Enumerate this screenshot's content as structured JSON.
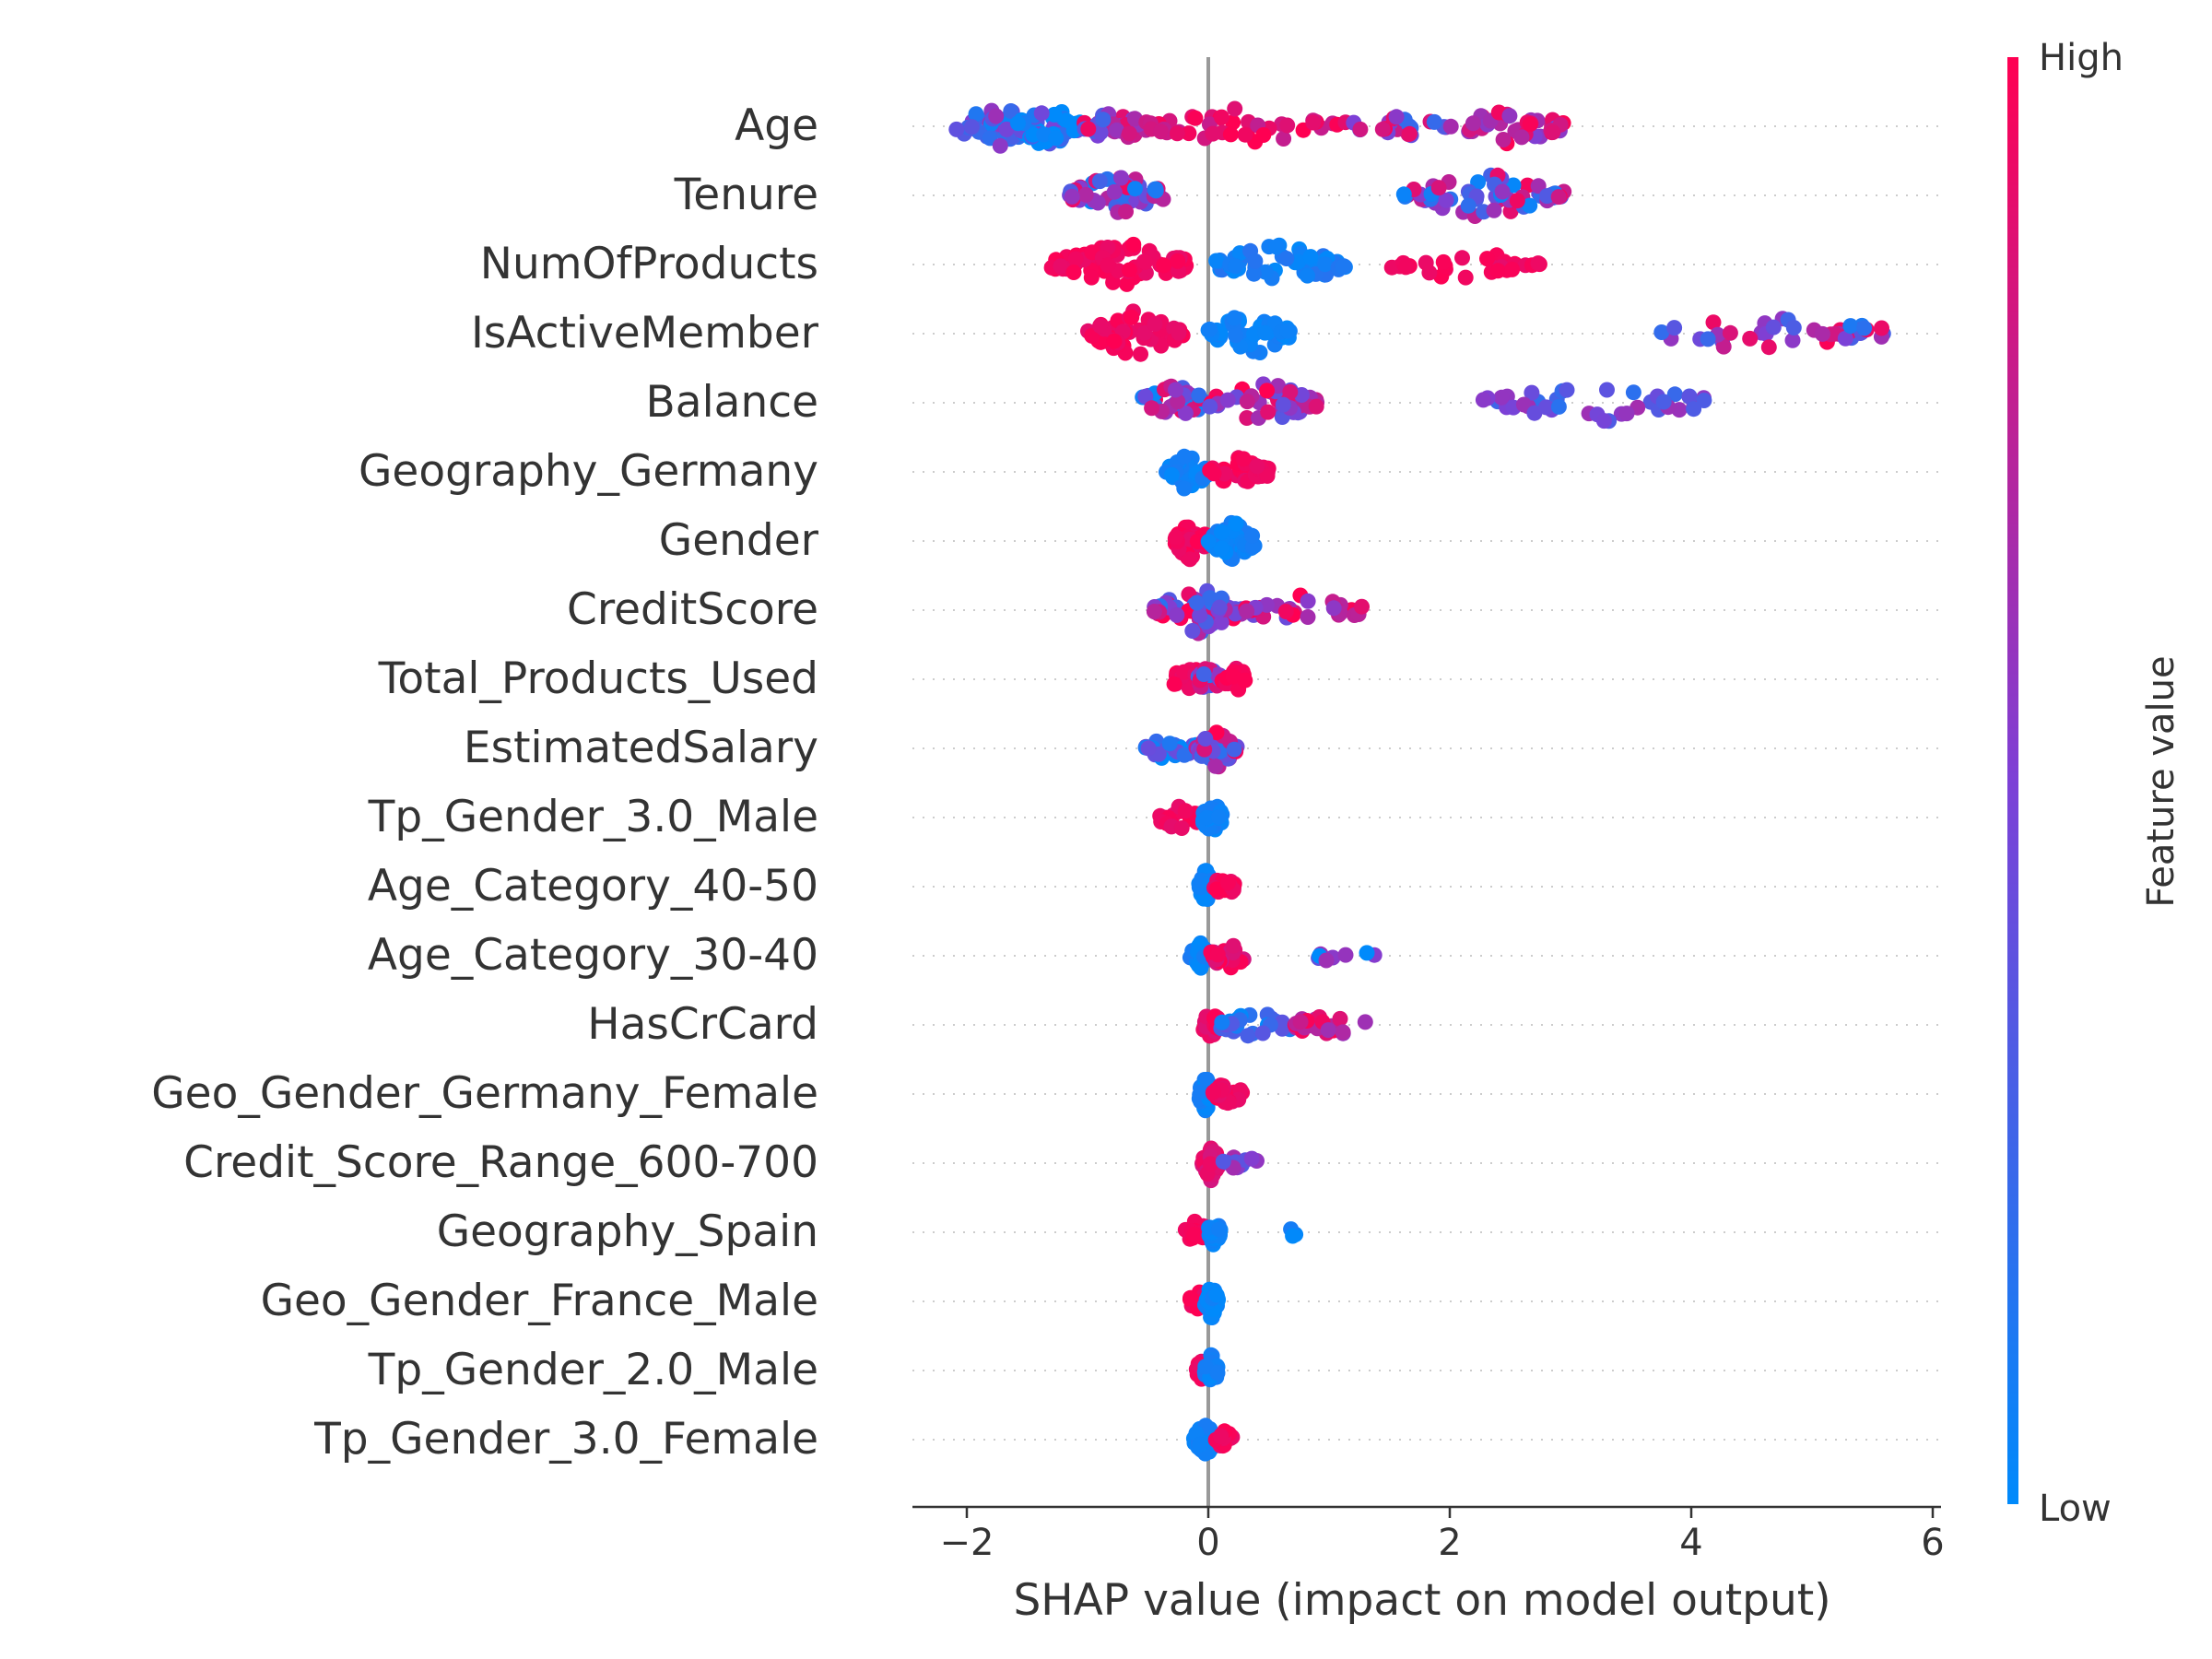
{
  "chart_data": {
    "type": "scatter",
    "title": "",
    "xlabel": "SHAP value (impact on model output)",
    "xlim": [
      -2.45,
      6.05
    ],
    "xticks": [
      -2,
      0,
      2,
      4,
      6
    ],
    "xtick_labels": [
      "−2",
      "0",
      "2",
      "4",
      "6"
    ],
    "grid": "dotted row guides per feature",
    "legend": "right colorbar",
    "colorbar": {
      "label": "Feature value",
      "high_label": "High",
      "low_label": "Low",
      "colors": [
        "#008afb",
        "#7d40d6",
        "#ff0052"
      ]
    },
    "zero_line_color": "#999999",
    "features": [
      {
        "name": "Age",
        "clusters": [
          {
            "lo": -2.1,
            "hi": -1.4,
            "n": 42,
            "val": 0.35,
            "spread": 0.6
          },
          {
            "lo": -1.6,
            "hi": -1.05,
            "n": 46,
            "val": 0.1,
            "spread": 0.8
          },
          {
            "lo": -1.05,
            "hi": -0.5,
            "n": 30,
            "val": 0.6,
            "spread": 0.7
          },
          {
            "lo": -0.5,
            "hi": 1.2,
            "n": 40,
            "val": 0.9,
            "spread": 0.3
          },
          {
            "lo": 1.2,
            "hi": 2.0,
            "n": 22,
            "val": 0.6,
            "spread": 0.8
          },
          {
            "lo": 2.0,
            "hi": 2.95,
            "n": 40,
            "val": 0.75,
            "spread": 0.5
          }
        ]
      },
      {
        "name": "Tenure",
        "clusters": [
          {
            "lo": -1.15,
            "hi": -0.35,
            "n": 50,
            "val": 0.5,
            "spread": 1.0
          },
          {
            "lo": 1.6,
            "hi": 2.95,
            "n": 60,
            "val": 0.5,
            "spread": 1.0
          }
        ]
      },
      {
        "name": "NumOfProducts",
        "clusters": [
          {
            "lo": -1.3,
            "hi": -0.15,
            "n": 70,
            "val": 0.95,
            "spread": 0.1
          },
          {
            "lo": 0.05,
            "hi": 1.15,
            "n": 60,
            "val": 0.08,
            "spread": 0.15
          },
          {
            "lo": 1.5,
            "hi": 2.75,
            "n": 30,
            "val": 0.95,
            "spread": 0.1
          }
        ]
      },
      {
        "name": "IsActiveMember",
        "clusters": [
          {
            "lo": -1.0,
            "hi": -0.2,
            "n": 55,
            "val": 0.95,
            "spread": 0.1
          },
          {
            "lo": 0.0,
            "hi": 0.7,
            "n": 50,
            "val": 0.05,
            "spread": 0.1
          },
          {
            "lo": 3.65,
            "hi": 5.7,
            "n": 40,
            "val": 0.55,
            "spread": 0.9
          }
        ]
      },
      {
        "name": "Balance",
        "clusters": [
          {
            "lo": -0.6,
            "hi": 0.0,
            "n": 40,
            "val": 0.5,
            "spread": 1.0
          },
          {
            "lo": 0.0,
            "hi": 0.9,
            "n": 45,
            "val": 0.7,
            "spread": 0.7
          },
          {
            "lo": 2.25,
            "hi": 4.2,
            "n": 40,
            "val": 0.4,
            "spread": 0.5
          }
        ]
      },
      {
        "name": "Geography_Germany",
        "clusters": [
          {
            "lo": -0.35,
            "hi": 0.0,
            "n": 40,
            "val": 0.05,
            "spread": 0.1
          },
          {
            "lo": 0.0,
            "hi": 0.5,
            "n": 35,
            "val": 0.95,
            "spread": 0.1
          }
        ]
      },
      {
        "name": "Gender",
        "clusters": [
          {
            "lo": -0.3,
            "hi": 0.0,
            "n": 40,
            "val": 0.95,
            "spread": 0.1
          },
          {
            "lo": 0.0,
            "hi": 0.4,
            "n": 40,
            "val": 0.05,
            "spread": 0.1
          }
        ]
      },
      {
        "name": "CreditScore",
        "clusters": [
          {
            "lo": -0.45,
            "hi": 0.3,
            "n": 60,
            "val": 0.6,
            "spread": 0.9
          },
          {
            "lo": 0.3,
            "hi": 1.3,
            "n": 30,
            "val": 0.7,
            "spread": 0.8
          }
        ]
      },
      {
        "name": "Total_Products_Used",
        "clusters": [
          {
            "lo": -0.3,
            "hi": 0.0,
            "n": 25,
            "val": 0.95,
            "spread": 0.1
          },
          {
            "lo": -0.1,
            "hi": 0.1,
            "n": 30,
            "val": 0.55,
            "spread": 0.8
          },
          {
            "lo": 0.1,
            "hi": 0.38,
            "n": 20,
            "val": 0.95,
            "spread": 0.1
          }
        ]
      },
      {
        "name": "EstimatedSalary",
        "clusters": [
          {
            "lo": -0.55,
            "hi": -0.1,
            "n": 20,
            "val": 0.2,
            "spread": 0.5
          },
          {
            "lo": -0.1,
            "hi": 0.25,
            "n": 40,
            "val": 0.6,
            "spread": 0.9
          }
        ]
      },
      {
        "name": "Tp_Gender_3.0_Male",
        "clusters": [
          {
            "lo": -0.4,
            "hi": -0.05,
            "n": 25,
            "val": 0.95,
            "spread": 0.1
          },
          {
            "lo": -0.05,
            "hi": 0.12,
            "n": 35,
            "val": 0.05,
            "spread": 0.1
          }
        ]
      },
      {
        "name": "Age_Category_40-50",
        "clusters": [
          {
            "lo": -0.08,
            "hi": 0.04,
            "n": 35,
            "val": 0.05,
            "spread": 0.1
          },
          {
            "lo": 0.04,
            "hi": 0.22,
            "n": 20,
            "val": 0.95,
            "spread": 0.1
          }
        ]
      },
      {
        "name": "Age_Category_30-40",
        "clusters": [
          {
            "lo": -0.15,
            "hi": 0.02,
            "n": 25,
            "val": 0.05,
            "spread": 0.15
          },
          {
            "lo": 0.02,
            "hi": 0.3,
            "n": 25,
            "val": 0.9,
            "spread": 0.2
          },
          {
            "lo": 0.9,
            "hi": 1.4,
            "n": 8,
            "val": 0.3,
            "spread": 0.7
          }
        ]
      },
      {
        "name": "HasCrCard",
        "clusters": [
          {
            "lo": -0.05,
            "hi": 0.1,
            "n": 25,
            "val": 0.9,
            "spread": 0.2
          },
          {
            "lo": 0.1,
            "hi": 0.7,
            "n": 25,
            "val": 0.2,
            "spread": 0.4
          },
          {
            "lo": 0.7,
            "hi": 1.3,
            "n": 22,
            "val": 0.8,
            "spread": 0.4
          }
        ]
      },
      {
        "name": "Geo_Gender_Germany_Female",
        "clusters": [
          {
            "lo": -0.08,
            "hi": 0.04,
            "n": 35,
            "val": 0.05,
            "spread": 0.1
          },
          {
            "lo": 0.04,
            "hi": 0.28,
            "n": 25,
            "val": 0.95,
            "spread": 0.1
          }
        ]
      },
      {
        "name": "Credit_Score_Range_600-700",
        "clusters": [
          {
            "lo": -0.05,
            "hi": 0.1,
            "n": 35,
            "val": 0.9,
            "spread": 0.15
          },
          {
            "lo": 0.1,
            "hi": 0.42,
            "n": 12,
            "val": 0.5,
            "spread": 0.4
          }
        ]
      },
      {
        "name": "Geography_Spain",
        "clusters": [
          {
            "lo": -0.2,
            "hi": 0.0,
            "n": 20,
            "val": 0.95,
            "spread": 0.1
          },
          {
            "lo": 0.0,
            "hi": 0.1,
            "n": 30,
            "val": 0.05,
            "spread": 0.1
          },
          {
            "lo": 0.68,
            "hi": 0.74,
            "n": 3,
            "val": 0.05,
            "spread": 0.1
          }
        ]
      },
      {
        "name": "Geo_Gender_France_Male",
        "clusters": [
          {
            "lo": -0.15,
            "hi": 0.0,
            "n": 18,
            "val": 0.95,
            "spread": 0.1
          },
          {
            "lo": -0.03,
            "hi": 0.08,
            "n": 35,
            "val": 0.05,
            "spread": 0.1
          }
        ]
      },
      {
        "name": "Tp_Gender_2.0_Male",
        "clusters": [
          {
            "lo": -0.12,
            "hi": 0.0,
            "n": 14,
            "val": 0.95,
            "spread": 0.1
          },
          {
            "lo": -0.03,
            "hi": 0.08,
            "n": 35,
            "val": 0.05,
            "spread": 0.1
          }
        ]
      },
      {
        "name": "Tp_Gender_3.0_Female",
        "clusters": [
          {
            "lo": -0.12,
            "hi": 0.06,
            "n": 35,
            "val": 0.05,
            "spread": 0.1
          },
          {
            "lo": 0.06,
            "hi": 0.22,
            "n": 15,
            "val": 0.95,
            "spread": 0.1
          }
        ]
      }
    ]
  }
}
